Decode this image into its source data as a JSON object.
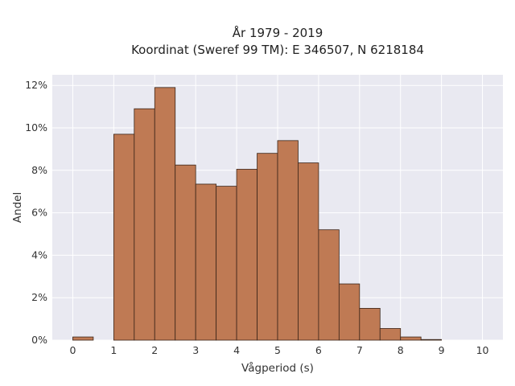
{
  "chart_data": {
    "type": "bar",
    "title": "År 1979 - 2019",
    "subtitle": "Koordinat (Sweref 99 TM): E 346507, N 6218184",
    "xlabel": "Vågperiod (s)",
    "ylabel": "Andel",
    "xlim": [
      -0.5,
      10.5
    ],
    "ylim": [
      0,
      12.5
    ],
    "x_ticks": [
      "0",
      "1",
      "2",
      "3",
      "4",
      "5",
      "6",
      "7",
      "8",
      "9",
      "10"
    ],
    "y_ticks": [
      "0%",
      "2%",
      "4%",
      "6%",
      "8%",
      "10%",
      "12%"
    ],
    "bin_width": 0.5,
    "bins": [
      {
        "x": 0.0,
        "value": 0.15
      },
      {
        "x": 1.0,
        "value": 9.7
      },
      {
        "x": 1.5,
        "value": 10.9
      },
      {
        "x": 2.0,
        "value": 11.9
      },
      {
        "x": 2.5,
        "value": 8.25
      },
      {
        "x": 3.0,
        "value": 7.35
      },
      {
        "x": 3.5,
        "value": 7.25
      },
      {
        "x": 4.0,
        "value": 8.05
      },
      {
        "x": 4.5,
        "value": 8.8
      },
      {
        "x": 5.0,
        "value": 9.4
      },
      {
        "x": 5.5,
        "value": 8.35
      },
      {
        "x": 6.0,
        "value": 5.2
      },
      {
        "x": 6.5,
        "value": 2.65
      },
      {
        "x": 7.0,
        "value": 1.5
      },
      {
        "x": 7.5,
        "value": 0.55
      },
      {
        "x": 8.0,
        "value": 0.15
      },
      {
        "x": 8.5,
        "value": 0.03
      }
    ],
    "grid": true,
    "colors": {
      "bar_fill": "#bf7a54",
      "bar_stroke": "#3a2418",
      "plot_background": "#e9e9f1",
      "grid": "#ffffff"
    }
  }
}
